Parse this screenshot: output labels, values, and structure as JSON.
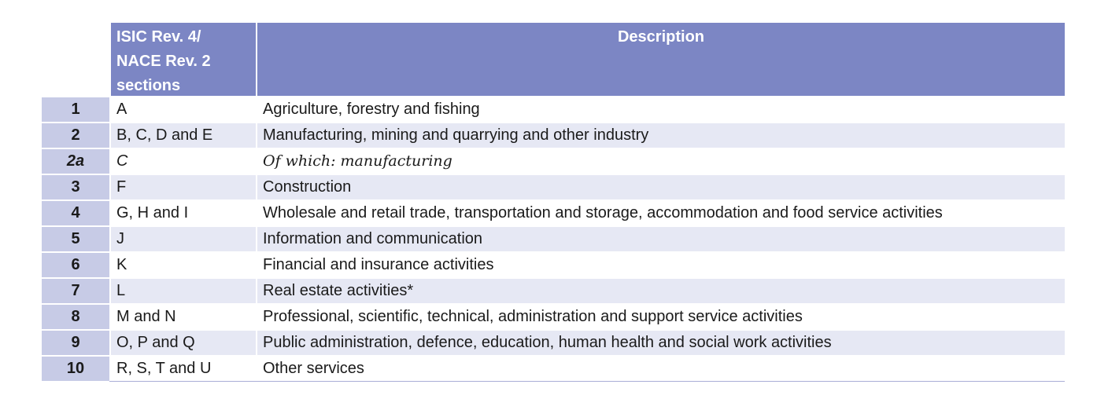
{
  "header": {
    "code_label": "ISIC Rev. 4/\nNACE Rev. 2\nsections",
    "desc_label": "Description"
  },
  "rows": [
    {
      "num": "1",
      "code": "A",
      "desc": "Agriculture, forestry and fishing"
    },
    {
      "num": "2",
      "code": "B, C, D and E",
      "desc": "Manufacturing, mining and quarrying and other industry"
    },
    {
      "num": "2a",
      "code": "C",
      "desc": "Of which: manufacturing"
    },
    {
      "num": "3",
      "code": "F",
      "desc": "Construction"
    },
    {
      "num": "4",
      "code": "G, H and I",
      "desc": "Wholesale and retail trade, transportation and storage, accommodation and food service activities"
    },
    {
      "num": "5",
      "code": "J",
      "desc": "Information and communication"
    },
    {
      "num": "6",
      "code": "K",
      "desc": "Financial and insurance activities"
    },
    {
      "num": "7",
      "code": "L",
      "desc": "Real estate activities*"
    },
    {
      "num": "8",
      "code": "M and N",
      "desc": "Professional, scientific, technical, administration and support service activities"
    },
    {
      "num": "9",
      "code": "O, P and Q",
      "desc": "Public administration, defence, education, human health and social work activities"
    },
    {
      "num": "10",
      "code": "R, S, T and U",
      "desc": "Other services"
    }
  ],
  "colors": {
    "header_bg": "#7c86c4",
    "num_bg": "#c7cbe6",
    "alt_row_bg": "#e6e8f4"
  }
}
